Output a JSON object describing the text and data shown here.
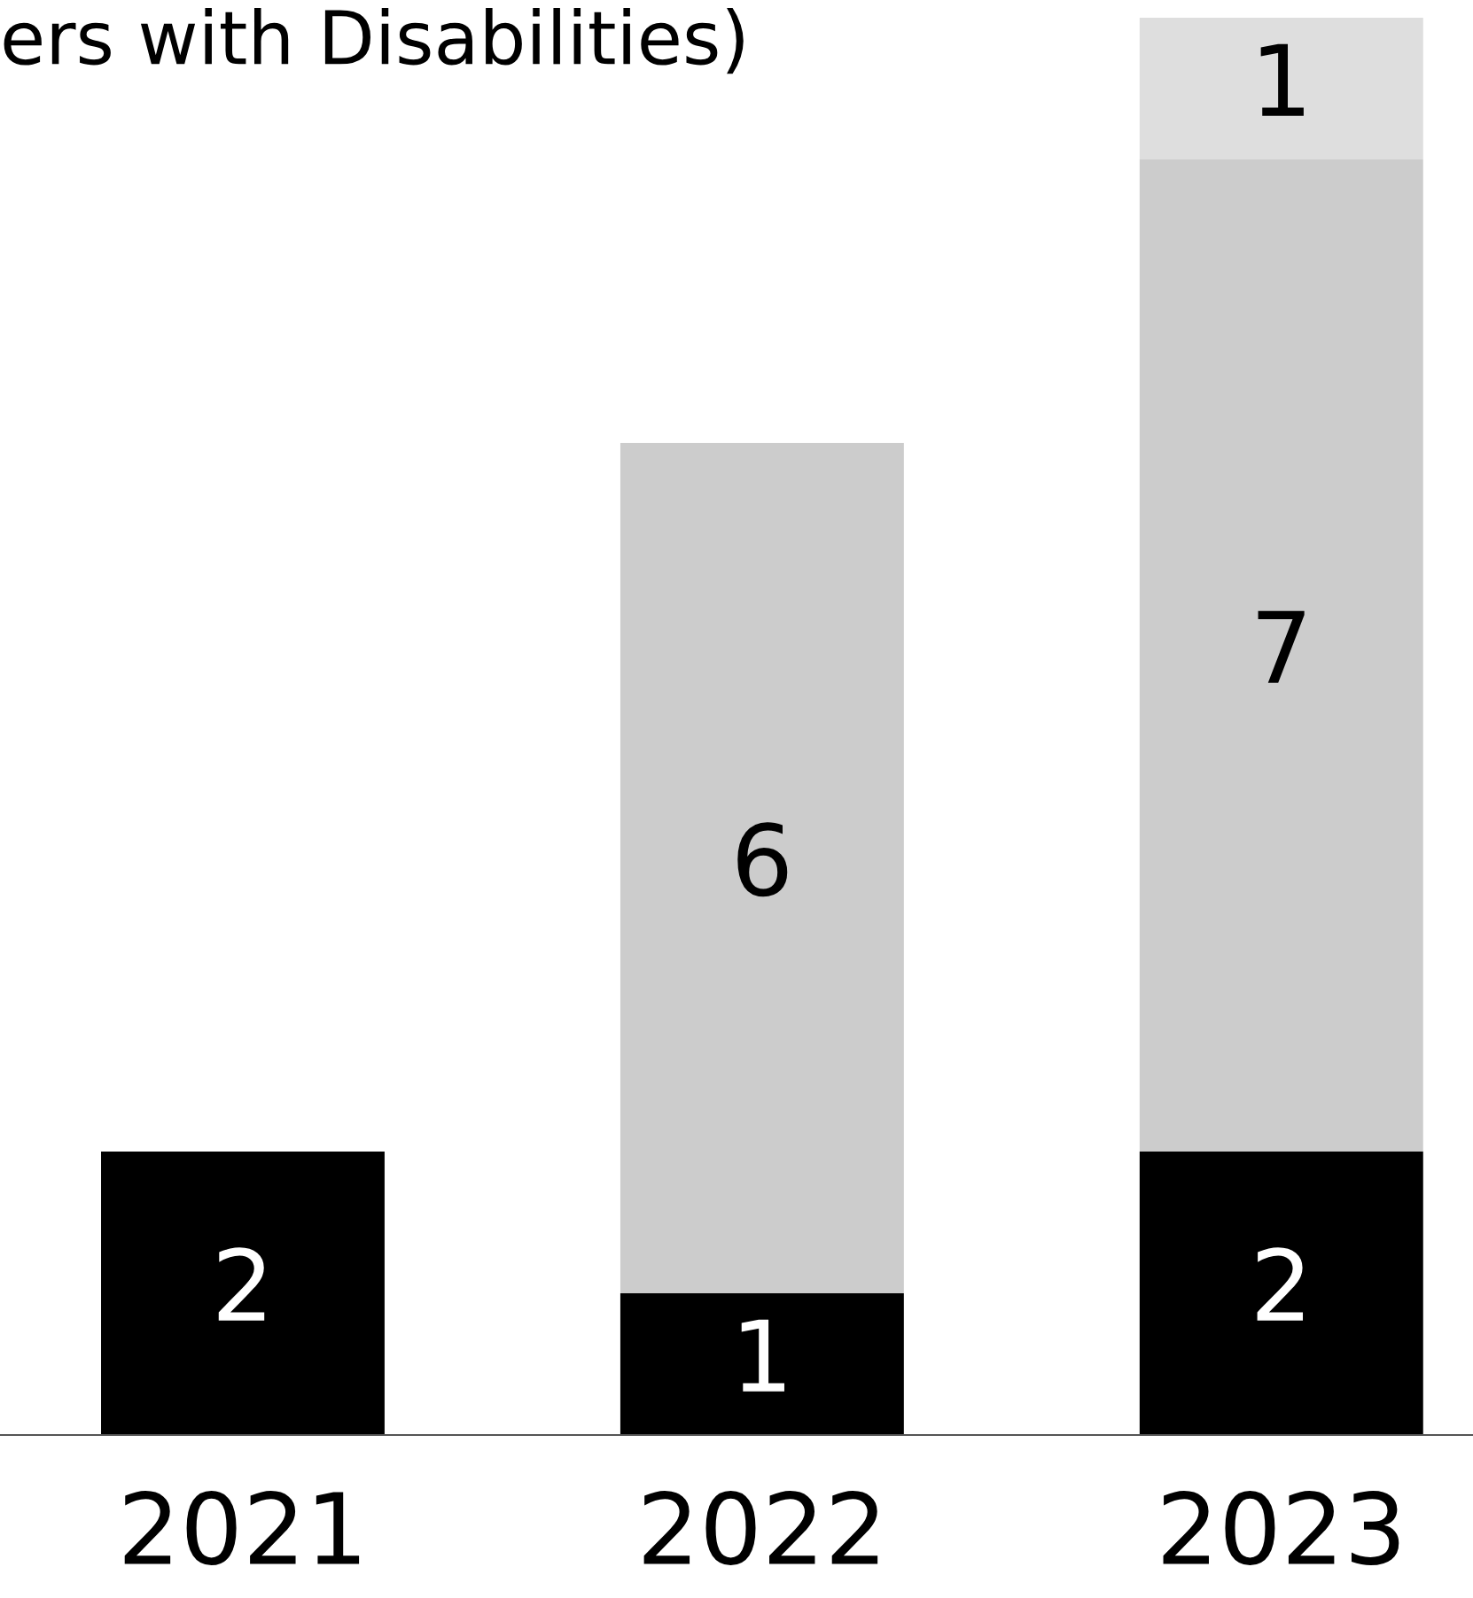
{
  "chart_data": {
    "type": "bar",
    "title": "ers with Disabilities)",
    "categories": [
      "2021",
      "2022",
      "2023"
    ],
    "stacked": true,
    "series": [
      {
        "color": "#000000",
        "values": [
          2,
          1,
          2
        ]
      },
      {
        "color": "#cccccc",
        "values": [
          null,
          6,
          7
        ]
      },
      {
        "color": "#dedede",
        "values": [
          null,
          null,
          1
        ]
      }
    ],
    "data_labels": true
  }
}
